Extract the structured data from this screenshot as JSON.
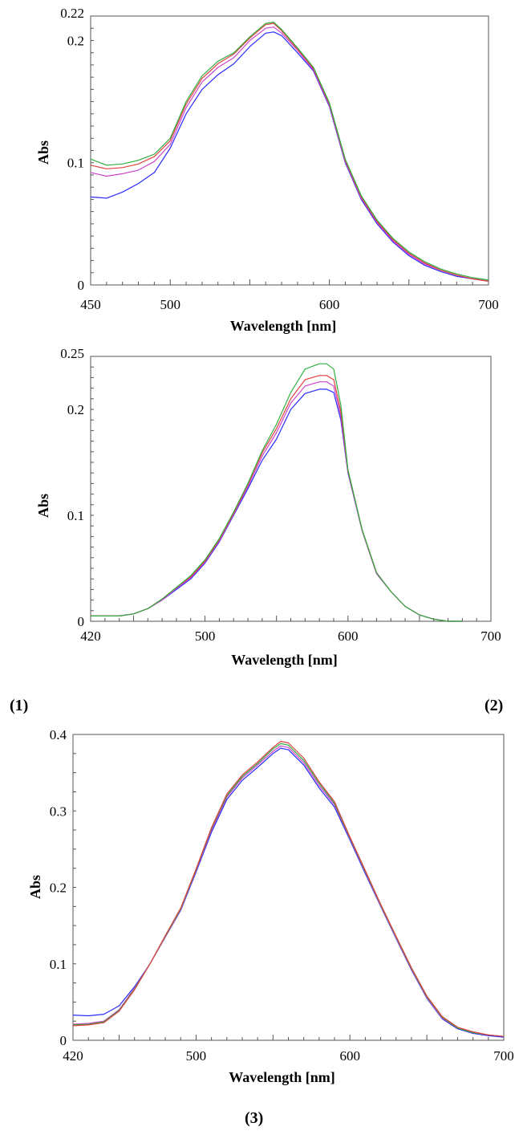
{
  "panel_labels": {
    "p1": "1",
    "p2": "2",
    "p3": "3"
  },
  "chart_data": [
    {
      "type": "line",
      "xlabel": "Wavelength [nm]",
      "ylabel": "Abs",
      "xlim": [
        450,
        700
      ],
      "ylim": [
        0,
        0.22
      ],
      "xticks": [
        450,
        500,
        600,
        700
      ],
      "xtick_labels": [
        "450",
        "500",
        "600",
        "700"
      ],
      "yticks": [
        0,
        0.1,
        0.2,
        0.22
      ],
      "ytick_labels": [
        "0",
        "0.1",
        "0.2",
        "0.22"
      ],
      "grid": false,
      "series": [
        {
          "color": "#2a2aff",
          "x": [
            450,
            460,
            470,
            480,
            490,
            500,
            510,
            520,
            530,
            540,
            550,
            560,
            565,
            570,
            580,
            590,
            600,
            610,
            620,
            630,
            640,
            650,
            660,
            670,
            680,
            690,
            700
          ],
          "y": [
            0.072,
            0.071,
            0.076,
            0.083,
            0.092,
            0.112,
            0.14,
            0.16,
            0.172,
            0.181,
            0.195,
            0.206,
            0.207,
            0.204,
            0.19,
            0.175,
            0.146,
            0.1,
            0.07,
            0.05,
            0.035,
            0.024,
            0.016,
            0.011,
            0.007,
            0.005,
            0.003
          ]
        },
        {
          "color": "#cc44cc",
          "x": [
            450,
            460,
            470,
            480,
            490,
            500,
            510,
            520,
            530,
            540,
            550,
            560,
            565,
            570,
            580,
            590,
            600,
            610,
            620,
            630,
            640,
            650,
            660,
            670,
            680,
            690,
            700
          ],
          "y": [
            0.092,
            0.089,
            0.091,
            0.094,
            0.101,
            0.115,
            0.145,
            0.166,
            0.178,
            0.186,
            0.2,
            0.21,
            0.211,
            0.206,
            0.192,
            0.176,
            0.147,
            0.101,
            0.071,
            0.051,
            0.036,
            0.025,
            0.017,
            0.012,
            0.008,
            0.005,
            0.003
          ]
        },
        {
          "color": "#e04040",
          "x": [
            450,
            460,
            470,
            480,
            490,
            500,
            510,
            520,
            530,
            540,
            550,
            560,
            565,
            570,
            580,
            590,
            600,
            610,
            620,
            630,
            640,
            650,
            660,
            670,
            680,
            690,
            700
          ],
          "y": [
            0.098,
            0.095,
            0.096,
            0.099,
            0.105,
            0.118,
            0.148,
            0.169,
            0.181,
            0.189,
            0.202,
            0.213,
            0.214,
            0.208,
            0.193,
            0.177,
            0.148,
            0.102,
            0.072,
            0.052,
            0.037,
            0.026,
            0.018,
            0.012,
            0.008,
            0.005,
            0.003
          ]
        },
        {
          "color": "#30b040",
          "x": [
            450,
            460,
            470,
            480,
            490,
            500,
            510,
            520,
            530,
            540,
            550,
            560,
            565,
            570,
            580,
            590,
            600,
            610,
            620,
            630,
            640,
            650,
            660,
            670,
            680,
            690,
            700
          ],
          "y": [
            0.103,
            0.098,
            0.099,
            0.102,
            0.107,
            0.12,
            0.15,
            0.171,
            0.183,
            0.19,
            0.203,
            0.214,
            0.215,
            0.209,
            0.194,
            0.178,
            0.149,
            0.103,
            0.073,
            0.053,
            0.038,
            0.027,
            0.019,
            0.013,
            0.009,
            0.006,
            0.004
          ]
        }
      ]
    },
    {
      "type": "line",
      "xlabel": "Wavelength [nm]",
      "ylabel": "Abs",
      "xlim": [
        420,
        700
      ],
      "ylim": [
        0,
        0.25
      ],
      "xticks": [
        420,
        500,
        600,
        700
      ],
      "xtick_labels": [
        "420",
        "500",
        "600",
        "700"
      ],
      "yticks": [
        0,
        0.1,
        0.2,
        0.25
      ],
      "ytick_labels": [
        "0",
        "0.1",
        "0.2",
        "0.25"
      ],
      "grid": false,
      "series": [
        {
          "color": "#2a2aff",
          "x": [
            420,
            440,
            450,
            460,
            470,
            480,
            490,
            500,
            510,
            520,
            530,
            540,
            550,
            560,
            570,
            580,
            585,
            590,
            595,
            600,
            610,
            620,
            630,
            640,
            650,
            660,
            670,
            680
          ],
          "y": [
            0.005,
            0.005,
            0.007,
            0.012,
            0.02,
            0.03,
            0.04,
            0.055,
            0.075,
            0.1,
            0.125,
            0.152,
            0.172,
            0.2,
            0.215,
            0.219,
            0.219,
            0.216,
            0.19,
            0.14,
            0.085,
            0.045,
            0.028,
            0.014,
            0.006,
            0.002,
            0,
            0
          ]
        },
        {
          "color": "#cc44cc",
          "x": [
            420,
            440,
            450,
            460,
            470,
            480,
            490,
            500,
            510,
            520,
            530,
            540,
            550,
            560,
            570,
            580,
            585,
            590,
            595,
            600,
            610,
            620,
            630,
            640,
            650,
            660,
            670,
            680
          ],
          "y": [
            0.005,
            0.005,
            0.007,
            0.012,
            0.02,
            0.031,
            0.041,
            0.056,
            0.076,
            0.101,
            0.127,
            0.156,
            0.178,
            0.206,
            0.222,
            0.226,
            0.226,
            0.222,
            0.194,
            0.141,
            0.085,
            0.045,
            0.028,
            0.014,
            0.006,
            0.002,
            0,
            0
          ]
        },
        {
          "color": "#e04040",
          "x": [
            420,
            440,
            450,
            460,
            470,
            480,
            490,
            500,
            510,
            520,
            530,
            540,
            550,
            560,
            570,
            580,
            585,
            590,
            595,
            600,
            610,
            620,
            630,
            640,
            650,
            660,
            670,
            680
          ],
          "y": [
            0.005,
            0.005,
            0.007,
            0.012,
            0.021,
            0.032,
            0.042,
            0.057,
            0.077,
            0.102,
            0.129,
            0.159,
            0.182,
            0.21,
            0.228,
            0.232,
            0.232,
            0.228,
            0.198,
            0.142,
            0.086,
            0.046,
            0.028,
            0.014,
            0.006,
            0.002,
            0,
            0
          ]
        },
        {
          "color": "#30b040",
          "x": [
            420,
            440,
            450,
            460,
            470,
            480,
            490,
            500,
            510,
            520,
            530,
            540,
            550,
            560,
            570,
            580,
            585,
            590,
            595,
            600,
            610,
            620,
            630,
            640,
            650,
            660,
            670,
            680
          ],
          "y": [
            0.005,
            0.005,
            0.007,
            0.012,
            0.021,
            0.032,
            0.043,
            0.058,
            0.078,
            0.103,
            0.13,
            0.161,
            0.186,
            0.216,
            0.238,
            0.243,
            0.243,
            0.238,
            0.204,
            0.143,
            0.086,
            0.046,
            0.028,
            0.014,
            0.006,
            0.002,
            0,
            0
          ]
        }
      ]
    },
    {
      "type": "line",
      "xlabel": "Wavelength [nm]",
      "ylabel": "Abs",
      "xlim": [
        420,
        700
      ],
      "ylim": [
        0,
        0.4
      ],
      "xticks": [
        420,
        500,
        600,
        700
      ],
      "xtick_labels": [
        "420",
        "500",
        "600",
        "700"
      ],
      "yticks": [
        0,
        0.1,
        0.2,
        0.3,
        0.4
      ],
      "ytick_labels": [
        "0",
        "0.1",
        "0.2",
        "0.3",
        "0.4"
      ],
      "grid": false,
      "series": [
        {
          "color": "#2a2aff",
          "x": [
            420,
            430,
            440,
            450,
            460,
            470,
            480,
            490,
            500,
            510,
            520,
            530,
            540,
            550,
            555,
            560,
            570,
            580,
            590,
            600,
            610,
            620,
            630,
            640,
            650,
            660,
            670,
            680,
            690,
            700
          ],
          "y": [
            0.033,
            0.032,
            0.034,
            0.045,
            0.07,
            0.1,
            0.135,
            0.17,
            0.22,
            0.272,
            0.315,
            0.34,
            0.357,
            0.375,
            0.382,
            0.38,
            0.36,
            0.33,
            0.305,
            0.262,
            0.218,
            0.175,
            0.133,
            0.092,
            0.055,
            0.028,
            0.015,
            0.009,
            0.006,
            0.004
          ]
        },
        {
          "color": "#cc44cc",
          "x": [
            420,
            430,
            440,
            450,
            460,
            470,
            480,
            490,
            500,
            510,
            520,
            530,
            540,
            550,
            555,
            560,
            570,
            580,
            590,
            600,
            610,
            620,
            630,
            640,
            650,
            660,
            670,
            680,
            690,
            700
          ],
          "y": [
            0.021,
            0.022,
            0.025,
            0.04,
            0.068,
            0.1,
            0.135,
            0.171,
            0.222,
            0.275,
            0.318,
            0.343,
            0.36,
            0.378,
            0.385,
            0.383,
            0.363,
            0.333,
            0.308,
            0.264,
            0.22,
            0.176,
            0.134,
            0.093,
            0.056,
            0.029,
            0.016,
            0.01,
            0.007,
            0.005
          ]
        },
        {
          "color": "#30b040",
          "x": [
            420,
            430,
            440,
            450,
            460,
            470,
            480,
            490,
            500,
            510,
            520,
            530,
            540,
            550,
            555,
            560,
            570,
            580,
            590,
            600,
            610,
            620,
            630,
            640,
            650,
            660,
            670,
            680,
            690,
            700
          ],
          "y": [
            0.02,
            0.021,
            0.024,
            0.039,
            0.067,
            0.1,
            0.136,
            0.172,
            0.223,
            0.277,
            0.32,
            0.345,
            0.362,
            0.381,
            0.388,
            0.386,
            0.366,
            0.336,
            0.31,
            0.265,
            0.221,
            0.177,
            0.135,
            0.094,
            0.057,
            0.03,
            0.016,
            0.01,
            0.007,
            0.005
          ]
        },
        {
          "color": "#e04040",
          "x": [
            420,
            430,
            440,
            450,
            460,
            470,
            480,
            490,
            500,
            510,
            520,
            530,
            540,
            550,
            555,
            560,
            570,
            580,
            590,
            600,
            610,
            620,
            630,
            640,
            650,
            660,
            670,
            680,
            690,
            700
          ],
          "y": [
            0.019,
            0.02,
            0.023,
            0.038,
            0.066,
            0.1,
            0.137,
            0.173,
            0.224,
            0.278,
            0.322,
            0.347,
            0.364,
            0.383,
            0.391,
            0.389,
            0.369,
            0.338,
            0.312,
            0.266,
            0.222,
            0.178,
            0.136,
            0.095,
            0.058,
            0.031,
            0.017,
            0.011,
            0.007,
            0.005
          ]
        }
      ]
    }
  ]
}
